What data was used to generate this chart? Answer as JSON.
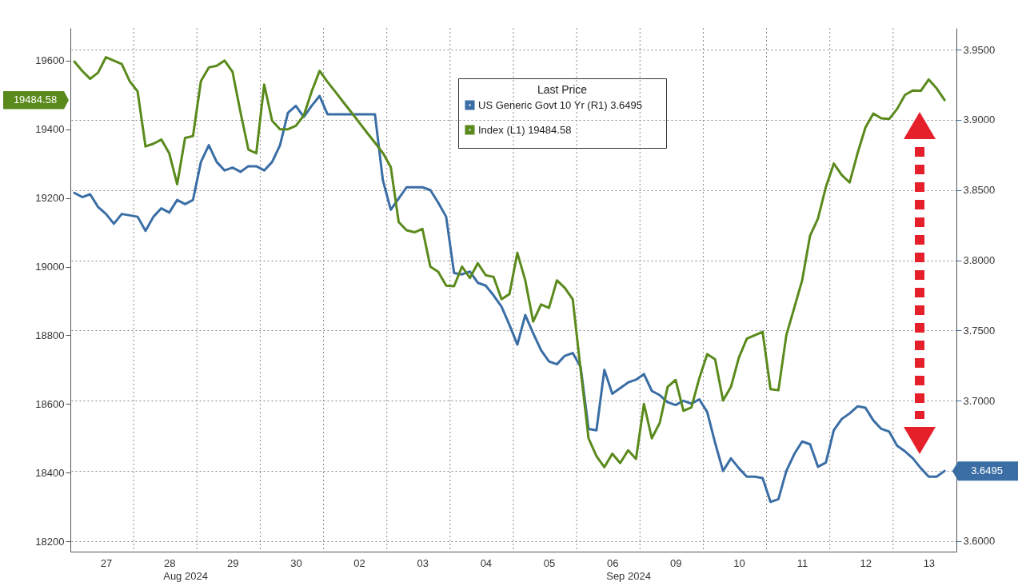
{
  "chart_data": {
    "type": "line",
    "categories": [
      null,
      null,
      null,
      null,
      "27",
      null,
      null,
      null,
      null,
      null,
      null,
      null,
      "28",
      null,
      null,
      null,
      null,
      null,
      null,
      null,
      "29",
      null,
      null,
      null,
      null,
      null,
      null,
      null,
      "30",
      null,
      null,
      null,
      null,
      null,
      null,
      null,
      "02",
      null,
      null,
      null,
      null,
      null,
      null,
      null,
      "03",
      null,
      null,
      null,
      null,
      null,
      null,
      null,
      "04",
      null,
      null,
      null,
      null,
      null,
      null,
      null,
      "05",
      null,
      null,
      null,
      null,
      null,
      null,
      null,
      "06",
      null,
      null,
      null,
      null,
      null,
      null,
      null,
      "09",
      null,
      null,
      null,
      null,
      null,
      null,
      null,
      "10",
      null,
      null,
      null,
      null,
      null,
      null,
      null,
      "11",
      null,
      null,
      null,
      null,
      null,
      null,
      null,
      "12",
      null,
      null,
      null,
      null,
      null,
      null,
      null,
      "13",
      null,
      null,
      null
    ],
    "ylim": [
      18170,
      19695
    ],
    "y2lim": [
      3.5926,
      3.9654
    ],
    "yticks": [
      18200,
      18400,
      18600,
      18800,
      19000,
      19200,
      19400,
      19600
    ],
    "y2ticks": [
      {
        "value": 3.6,
        "label": "3.6000"
      },
      {
        "value": 3.65,
        "label": null
      },
      {
        "value": 3.7,
        "label": "3.7000"
      },
      {
        "value": 3.75,
        "label": "3.7500"
      },
      {
        "value": 3.8,
        "label": "3.8000"
      },
      {
        "value": 3.85,
        "label": "3.8500"
      },
      {
        "value": 3.9,
        "label": "3.9000"
      },
      {
        "value": 3.95,
        "label": "3.9500"
      }
    ],
    "grid": true,
    "legend": "top",
    "legend_title": "Last Price",
    "series": [
      {
        "name": "US Generic Govt 10 Yr  (R1)      3.6495",
        "color": "#3a6ea5",
        "axis": "y2",
        "values": [
          3.848,
          3.845,
          3.847,
          3.838,
          3.833,
          3.826,
          3.833,
          3.832,
          3.831,
          3.821,
          3.831,
          3.837,
          3.834,
          3.843,
          3.84,
          3.843,
          3.87,
          3.882,
          3.87,
          3.864,
          3.866,
          3.863,
          3.867,
          3.867,
          3.864,
          3.87,
          3.882,
          3.905,
          3.91,
          3.902,
          3.91,
          3.917,
          3.904,
          3.904,
          3.904,
          3.904,
          3.904,
          3.904,
          3.904,
          3.857,
          3.836,
          3.844,
          3.852,
          3.852,
          3.852,
          3.85,
          3.841,
          3.831,
          3.791,
          3.79,
          3.792,
          3.784,
          3.782,
          3.775,
          3.767,
          3.754,
          3.74,
          3.761,
          3.748,
          3.736,
          3.728,
          3.726,
          3.732,
          3.734,
          3.724,
          3.68,
          3.679,
          3.722,
          3.705,
          3.709,
          3.713,
          3.715,
          3.719,
          3.707,
          3.704,
          3.699,
          3.697,
          3.7,
          3.698,
          3.701,
          3.692,
          3.67,
          3.65,
          3.659,
          3.652,
          3.646,
          3.646,
          3.645,
          3.628,
          3.63,
          3.65,
          3.662,
          3.671,
          3.669,
          3.653,
          3.656,
          3.679,
          3.687,
          3.691,
          3.696,
          3.695,
          3.686,
          3.68,
          3.678,
          3.668,
          3.664,
          3.659,
          3.652,
          3.646,
          3.646,
          3.65,
          null
        ]
      },
      {
        "name": "Index (L1)      19484.58",
        "color": "#5a8a1c",
        "axis": "y",
        "values": [
          19597,
          19570,
          19547,
          19565,
          19610,
          19600,
          19590,
          19540,
          19510,
          19350,
          19358,
          19370,
          19330,
          19240,
          19375,
          19380,
          19540,
          19580,
          19585,
          19600,
          19567,
          19450,
          19341,
          19330,
          19530,
          19425,
          19400,
          19400,
          19410,
          19440,
          19510,
          19570,
          19538,
          19509,
          19479,
          19450,
          19420,
          19390,
          19361,
          19331,
          19290,
          19130,
          19106,
          19100,
          19110,
          19000,
          18985,
          18945,
          18943,
          19000,
          18967,
          19010,
          18975,
          18970,
          18905,
          18920,
          19040,
          18960,
          18840,
          18890,
          18880,
          18960,
          18938,
          18905,
          18700,
          18500,
          18448,
          18416,
          18455,
          18428,
          18465,
          18440,
          18600,
          18500,
          18545,
          18650,
          18670,
          18580,
          18590,
          18675,
          18745,
          18730,
          18610,
          18650,
          18735,
          18790,
          18800,
          18810,
          18643,
          18640,
          18800,
          18880,
          18960,
          19090,
          19140,
          19232,
          19300,
          19267,
          19245,
          19330,
          19405,
          19446,
          19432,
          19430,
          19459,
          19500,
          19513,
          19512,
          19545,
          19519,
          19485,
          null
        ]
      }
    ],
    "annotations": [
      "3.6495",
      "19484.58",
      "Aug 2024",
      "Sep 2024"
    ]
  }
}
